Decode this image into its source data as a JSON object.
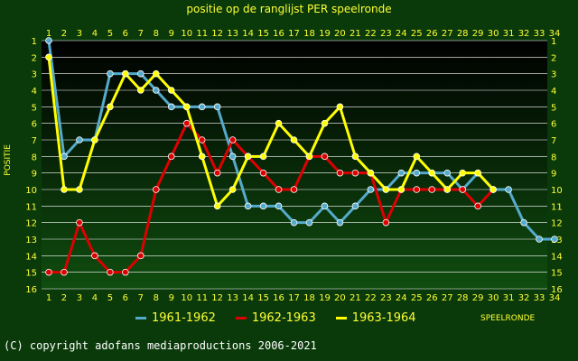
{
  "chart_data": {
    "type": "line",
    "title": "positie op de ranglijst PER speelronde",
    "xlabel": "SPEELRONDE",
    "ylabel": "POSITIE",
    "x": [
      1,
      2,
      3,
      4,
      5,
      6,
      7,
      8,
      9,
      10,
      11,
      12,
      13,
      14,
      15,
      16,
      17,
      18,
      19,
      20,
      21,
      22,
      23,
      24,
      25,
      26,
      27,
      28,
      29,
      30,
      31,
      32,
      33,
      34
    ],
    "xlim": [
      1,
      34
    ],
    "ylim": [
      1,
      16
    ],
    "y_inverted": true,
    "y_ticks": [
      1,
      2,
      3,
      4,
      5,
      6,
      7,
      8,
      9,
      10,
      11,
      12,
      13,
      14,
      15,
      16
    ],
    "grid": true,
    "legend_position": "bottom",
    "series": [
      {
        "name": "1961-1962",
        "color": "#55aacc",
        "values": [
          1,
          8,
          7,
          7,
          3,
          3,
          3,
          4,
          5,
          5,
          5,
          5,
          8,
          11,
          11,
          11,
          12,
          12,
          11,
          12,
          11,
          10,
          10,
          9,
          9,
          9,
          9,
          10,
          9,
          10,
          10,
          12,
          13,
          13
        ]
      },
      {
        "name": "1962-1963",
        "color": "#dd0000",
        "values": [
          15,
          15,
          12,
          14,
          15,
          15,
          14,
          10,
          8,
          6,
          7,
          9,
          7,
          8,
          9,
          10,
          10,
          8,
          8,
          9,
          9,
          9,
          12,
          10,
          10,
          10,
          10,
          10,
          11,
          10,
          null,
          null,
          null,
          null
        ]
      },
      {
        "name": "1963-1964",
        "color": "#ffff00",
        "values": [
          2,
          10,
          10,
          7,
          5,
          3,
          4,
          3,
          4,
          5,
          8,
          11,
          10,
          8,
          8,
          6,
          7,
          8,
          6,
          5,
          8,
          9,
          10,
          10,
          8,
          9,
          10,
          9,
          9,
          10,
          null,
          null,
          null,
          null
        ]
      }
    ]
  },
  "colors": {
    "background": "#0a3a0a",
    "plot_top": "#000000",
    "plot_bottom": "#0f4d0f",
    "text": "#ffff33",
    "grid": "#ffffff"
  },
  "copyright": "(C) copyright adofans mediaproductions 2006-2021"
}
